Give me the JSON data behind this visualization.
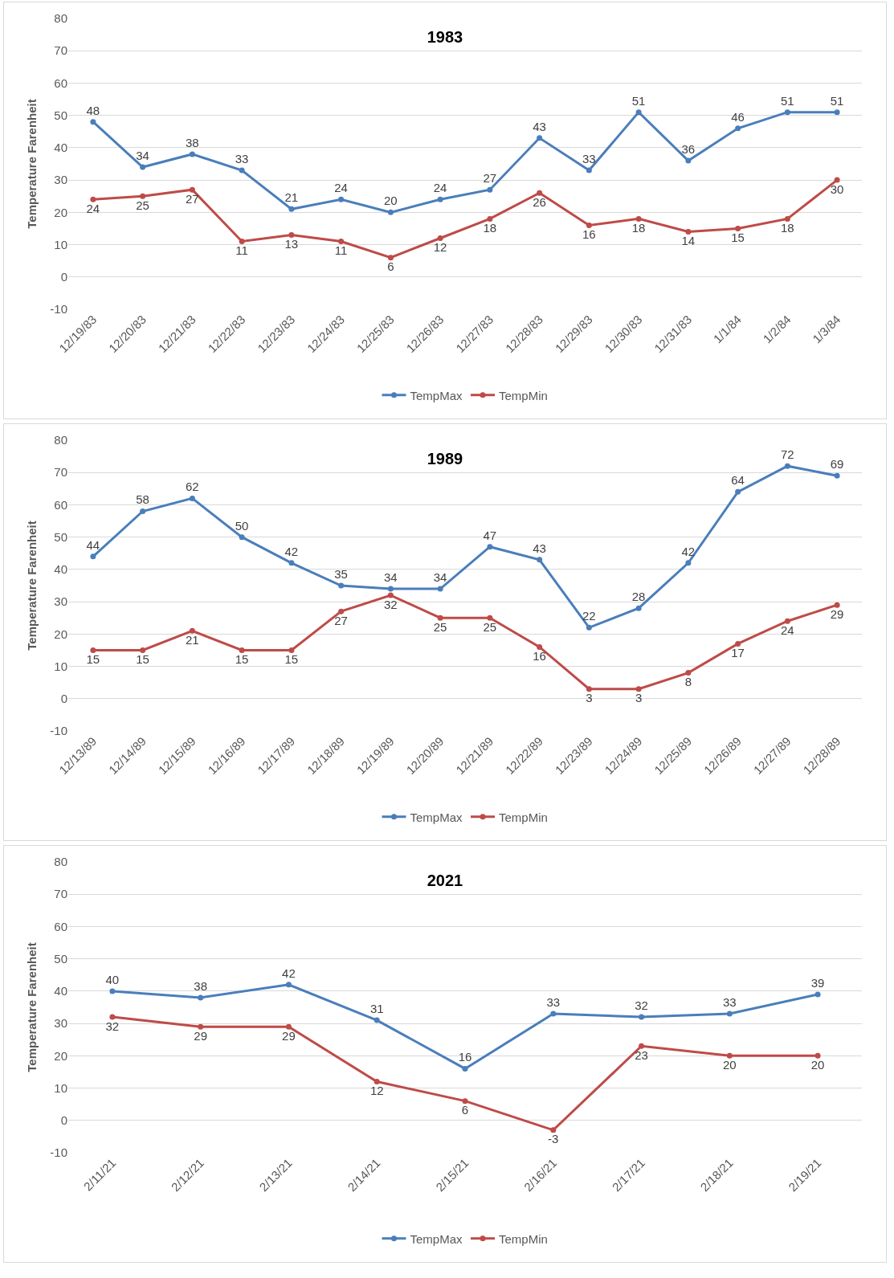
{
  "chart_data": [
    {
      "type": "line",
      "title": "1983",
      "ylabel": "Temperature Farenheit",
      "categories": [
        "12/19/83",
        "12/20/83",
        "12/21/83",
        "12/22/83",
        "12/23/83",
        "12/24/83",
        "12/25/83",
        "12/26/83",
        "12/27/83",
        "12/28/83",
        "12/29/83",
        "12/30/83",
        "12/31/83",
        "1/1/84",
        "1/2/84",
        "1/3/84"
      ],
      "series": [
        {
          "name": "TempMax",
          "color": "#4a7ebb",
          "values": [
            48,
            34,
            38,
            33,
            21,
            24,
            20,
            24,
            27,
            43,
            33,
            51,
            36,
            46,
            51,
            51
          ]
        },
        {
          "name": "TempMin",
          "color": "#be4b48",
          "values": [
            24,
            25,
            27,
            11,
            13,
            11,
            6,
            12,
            18,
            26,
            16,
            18,
            14,
            15,
            18,
            30
          ]
        }
      ],
      "ylim": [
        -10,
        80
      ],
      "yticks": [
        -10,
        0,
        10,
        20,
        30,
        40,
        50,
        60,
        70,
        80
      ],
      "grid": "y",
      "legend": "bottom",
      "marker": "circle",
      "data_labels": true
    },
    {
      "type": "line",
      "title": "1989",
      "ylabel": "Temperature Farenheit",
      "categories": [
        "12/13/89",
        "12/14/89",
        "12/15/89",
        "12/16/89",
        "12/17/89",
        "12/18/89",
        "12/19/89",
        "12/20/89",
        "12/21/89",
        "12/22/89",
        "12/23/89",
        "12/24/89",
        "12/25/89",
        "12/26/89",
        "12/27/89",
        "12/28/89"
      ],
      "series": [
        {
          "name": "TempMax",
          "color": "#4a7ebb",
          "values": [
            44,
            58,
            62,
            50,
            42,
            35,
            34,
            34,
            47,
            43,
            22,
            28,
            42,
            64,
            72,
            69
          ]
        },
        {
          "name": "TempMin",
          "color": "#be4b48",
          "values": [
            15,
            15,
            21,
            15,
            15,
            27,
            32,
            25,
            25,
            16,
            3,
            3,
            8,
            17,
            24,
            29
          ]
        }
      ],
      "ylim": [
        -10,
        80
      ],
      "yticks": [
        -10,
        0,
        10,
        20,
        30,
        40,
        50,
        60,
        70,
        80
      ],
      "grid": "y",
      "legend": "bottom",
      "marker": "circle",
      "data_labels": true
    },
    {
      "type": "line",
      "title": "2021",
      "ylabel": "Temperature Farenheit",
      "categories": [
        "2/11/21",
        "2/12/21",
        "2/13/21",
        "2/14/21",
        "2/15/21",
        "2/16/21",
        "2/17/21",
        "2/18/21",
        "2/19/21"
      ],
      "series": [
        {
          "name": "TempMax",
          "color": "#4a7ebb",
          "values": [
            40,
            38,
            42,
            31,
            16,
            33,
            32,
            33,
            39
          ]
        },
        {
          "name": "TempMin",
          "color": "#be4b48",
          "values": [
            32,
            29,
            29,
            12,
            6,
            -3,
            23,
            20,
            20
          ]
        }
      ],
      "ylim": [
        -10,
        80
      ],
      "yticks": [
        -10,
        0,
        10,
        20,
        30,
        40,
        50,
        60,
        70,
        80
      ],
      "grid": "y",
      "legend": "bottom",
      "marker": "circle",
      "data_labels": true
    }
  ]
}
